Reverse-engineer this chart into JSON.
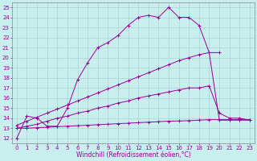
{
  "title": "",
  "xlabel": "Windchill (Refroidissement éolien,°C)",
  "ylabel": "",
  "xlim": [
    -0.5,
    23.5
  ],
  "ylim": [
    11.5,
    25.5
  ],
  "xticks": [
    0,
    1,
    2,
    3,
    4,
    5,
    6,
    7,
    8,
    9,
    10,
    11,
    12,
    13,
    14,
    15,
    16,
    17,
    18,
    19,
    20,
    21,
    22,
    23
  ],
  "yticks": [
    12,
    13,
    14,
    15,
    16,
    17,
    18,
    19,
    20,
    21,
    22,
    23,
    24,
    25
  ],
  "background_color": "#c8eeee",
  "grid_color": "#aad4d4",
  "line_color": "#990099",
  "series": [
    {
      "x": [
        0,
        1,
        2,
        3,
        4,
        5,
        6,
        7,
        8,
        9,
        10,
        11,
        12,
        13,
        14,
        15,
        16,
        17,
        18,
        19,
        20,
        21,
        22,
        23
      ],
      "y": [
        12.0,
        14.2,
        14.0,
        13.2,
        13.2,
        15.0,
        17.8,
        19.5,
        21.0,
        21.5,
        22.2,
        23.2,
        24.0,
        24.2,
        24.0,
        25.0,
        24.0,
        24.0,
        23.2,
        20.5,
        13.8,
        13.8,
        13.8,
        13.8
      ]
    },
    {
      "x": [
        0,
        1,
        2,
        3,
        4,
        5,
        6,
        7,
        8,
        9,
        10,
        11,
        12,
        13,
        14,
        15,
        16,
        17,
        18,
        19,
        20
      ],
      "y": [
        13.3,
        13.7,
        14.1,
        14.5,
        14.9,
        15.3,
        15.7,
        16.1,
        16.5,
        16.9,
        17.3,
        17.7,
        18.1,
        18.5,
        18.9,
        19.3,
        19.7,
        20.0,
        20.3,
        20.5,
        20.5
      ]
    },
    {
      "x": [
        0,
        1,
        2,
        3,
        4,
        5,
        6,
        7,
        8,
        9,
        10,
        11,
        12,
        13,
        14,
        15,
        16,
        17,
        18,
        19,
        20,
        21,
        22,
        23
      ],
      "y": [
        13.0,
        13.2,
        13.4,
        13.7,
        14.0,
        14.2,
        14.5,
        14.7,
        15.0,
        15.2,
        15.5,
        15.7,
        16.0,
        16.2,
        16.4,
        16.6,
        16.8,
        17.0,
        17.0,
        17.2,
        14.5,
        14.0,
        14.0,
        13.8
      ]
    },
    {
      "x": [
        0,
        1,
        2,
        3,
        4,
        5,
        6,
        7,
        8,
        9,
        10,
        11,
        12,
        13,
        14,
        15,
        16,
        17,
        18,
        19,
        20,
        21,
        22,
        23
      ],
      "y": [
        13.0,
        13.0,
        13.05,
        13.1,
        13.15,
        13.2,
        13.25,
        13.3,
        13.35,
        13.4,
        13.45,
        13.5,
        13.55,
        13.6,
        13.65,
        13.7,
        13.72,
        13.75,
        13.8,
        13.85,
        13.85,
        13.85,
        13.85,
        13.85
      ]
    }
  ],
  "tick_fontsize": 5.0,
  "xlabel_fontsize": 5.5,
  "tick_color": "#990099",
  "spine_color": "#888888"
}
